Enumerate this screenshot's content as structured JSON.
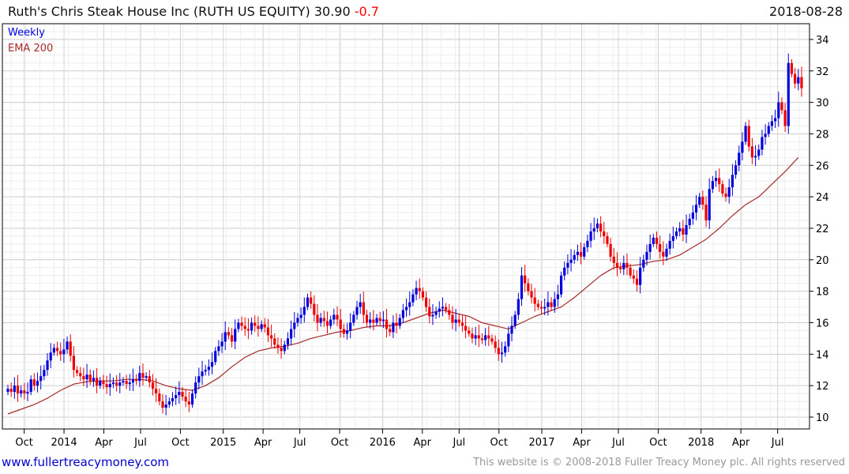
{
  "header": {
    "title": "Ruth's Chris Steak House Inc (RUTH US EQUITY) 30.90",
    "change": "-0.7",
    "date": "2018-08-28"
  },
  "footer": {
    "site": "www.fullertreacymoney.com",
    "copyright": "This website is © 2008-2018 Fuller Treacy Money plc. All rights reserved"
  },
  "colors": {
    "up": "#0000dd",
    "down": "#ee0000",
    "ema": "#a52a2a",
    "grid": "#dddddd"
  },
  "chart_data": {
    "type": "candlestick",
    "title": "Ruth's Chris Steak House Inc (RUTH US EQUITY)",
    "legend": [
      "Weekly",
      "EMA 200"
    ],
    "legend_position": "top-left",
    "ylim": [
      9.5,
      34.8
    ],
    "yticks": [
      10,
      12,
      14,
      16,
      18,
      20,
      22,
      24,
      26,
      28,
      30,
      32,
      34
    ],
    "xticks": [
      {
        "label": "Oct",
        "week": 5
      },
      {
        "label": "2014",
        "week": 18
      },
      {
        "label": "Apr",
        "week": 31
      },
      {
        "label": "Jul",
        "week": 43
      },
      {
        "label": "Oct",
        "week": 56
      },
      {
        "label": "2015",
        "week": 70
      },
      {
        "label": "Apr",
        "week": 83
      },
      {
        "label": "Jul",
        "week": 95
      },
      {
        "label": "Oct",
        "week": 108
      },
      {
        "label": "2016",
        "week": 122
      },
      {
        "label": "Apr",
        "week": 135
      },
      {
        "label": "Jul",
        "week": 147
      },
      {
        "label": "Oct",
        "week": 160
      },
      {
        "label": "2017",
        "week": 174
      },
      {
        "label": "Apr",
        "week": 187
      },
      {
        "label": "Jul",
        "week": 199
      },
      {
        "label": "Oct",
        "week": 212
      },
      {
        "label": "2018",
        "week": 226
      },
      {
        "label": "Apr",
        "week": 239
      },
      {
        "label": "Jul",
        "week": 251
      }
    ],
    "weekly_close": [
      11.8,
      11.6,
      12.0,
      11.5,
      11.7,
      11.5,
      11.6,
      12.4,
      12.0,
      12.3,
      12.6,
      13.0,
      13.6,
      14.1,
      14.4,
      14.2,
      14.0,
      14.3,
      14.8,
      13.9,
      13.0,
      12.8,
      12.6,
      12.4,
      12.7,
      12.3,
      12.5,
      12.0,
      12.3,
      12.1,
      11.9,
      12.1,
      12.2,
      12.0,
      12.2,
      12.3,
      12.1,
      12.2,
      12.4,
      12.3,
      12.8,
      12.5,
      12.6,
      12.2,
      11.8,
      11.5,
      11.0,
      10.6,
      10.8,
      11.0,
      11.2,
      11.4,
      11.6,
      11.3,
      11.0,
      10.8,
      11.5,
      12.2,
      12.6,
      12.9,
      13.0,
      13.2,
      13.5,
      14.2,
      14.5,
      14.8,
      15.4,
      15.2,
      14.8,
      15.6,
      16.0,
      15.8,
      15.6,
      15.5,
      16.0,
      15.8,
      15.6,
      15.9,
      15.7,
      15.2,
      15.0,
      14.6,
      14.4,
      14.2,
      14.6,
      15.0,
      15.6,
      16.0,
      16.3,
      16.5,
      17.0,
      17.6,
      17.2,
      16.5,
      16.0,
      16.3,
      16.1,
      15.8,
      16.2,
      16.5,
      16.2,
      15.6,
      15.3,
      15.5,
      16.0,
      16.5,
      17.0,
      17.3,
      16.5,
      16.0,
      16.2,
      16.0,
      16.3,
      16.1,
      16.2,
      15.6,
      15.4,
      16.0,
      15.8,
      16.3,
      16.8,
      17.0,
      17.3,
      17.8,
      18.2,
      18.0,
      17.6,
      17.0,
      16.4,
      16.5,
      16.7,
      16.9,
      17.0,
      16.8,
      16.5,
      16.0,
      16.2,
      16.0,
      15.8,
      15.5,
      15.3,
      15.0,
      15.2,
      15.0,
      14.9,
      15.2,
      15.0,
      14.8,
      14.4,
      14.0,
      14.1,
      14.5,
      15.3,
      15.8,
      16.5,
      17.5,
      19.0,
      18.5,
      18.0,
      17.6,
      17.2,
      17.0,
      16.9,
      17.0,
      17.3,
      17.0,
      17.5,
      17.8,
      19.0,
      19.5,
      19.8,
      20.0,
      20.3,
      20.5,
      20.2,
      20.8,
      21.2,
      21.8,
      22.0,
      22.3,
      21.8,
      21.5,
      21.0,
      20.2,
      19.8,
      19.5,
      19.4,
      19.8,
      19.5,
      19.0,
      18.8,
      18.4,
      19.5,
      20.0,
      20.5,
      21.0,
      21.4,
      21.0,
      20.5,
      20.2,
      20.7,
      21.2,
      21.5,
      21.8,
      22.0,
      21.6,
      22.2,
      22.6,
      23.0,
      23.5,
      24.0,
      23.5,
      22.5,
      24.5,
      25.0,
      25.2,
      24.8,
      24.2,
      24.0,
      24.6,
      25.4,
      26.0,
      26.8,
      27.5,
      28.5,
      27.2,
      26.5,
      26.6,
      27.0,
      27.8,
      28.0,
      28.5,
      28.8,
      29.0,
      30.0,
      29.5,
      28.5,
      32.5,
      31.8,
      31.2,
      31.6,
      30.9
    ],
    "ema200_every_4_weeks": [
      10.2,
      10.5,
      10.8,
      11.2,
      11.7,
      12.1,
      12.25,
      12.3,
      12.3,
      12.4,
      12.4,
      12.3,
      12.0,
      11.8,
      11.7,
      12.0,
      12.5,
      13.2,
      13.8,
      14.2,
      14.4,
      14.5,
      14.7,
      15.0,
      15.2,
      15.4,
      15.5,
      15.7,
      15.8,
      15.8,
      16.0,
      16.3,
      16.6,
      16.8,
      16.6,
      16.4,
      16.0,
      15.8,
      15.6,
      16.0,
      16.4,
      16.7,
      17.0,
      17.6,
      18.3,
      19.0,
      19.5,
      19.6,
      19.7,
      19.9,
      20.0,
      20.3,
      20.8,
      21.3,
      22.0,
      22.8,
      23.5,
      24.0,
      24.8,
      25.6,
      26.5
    ]
  }
}
